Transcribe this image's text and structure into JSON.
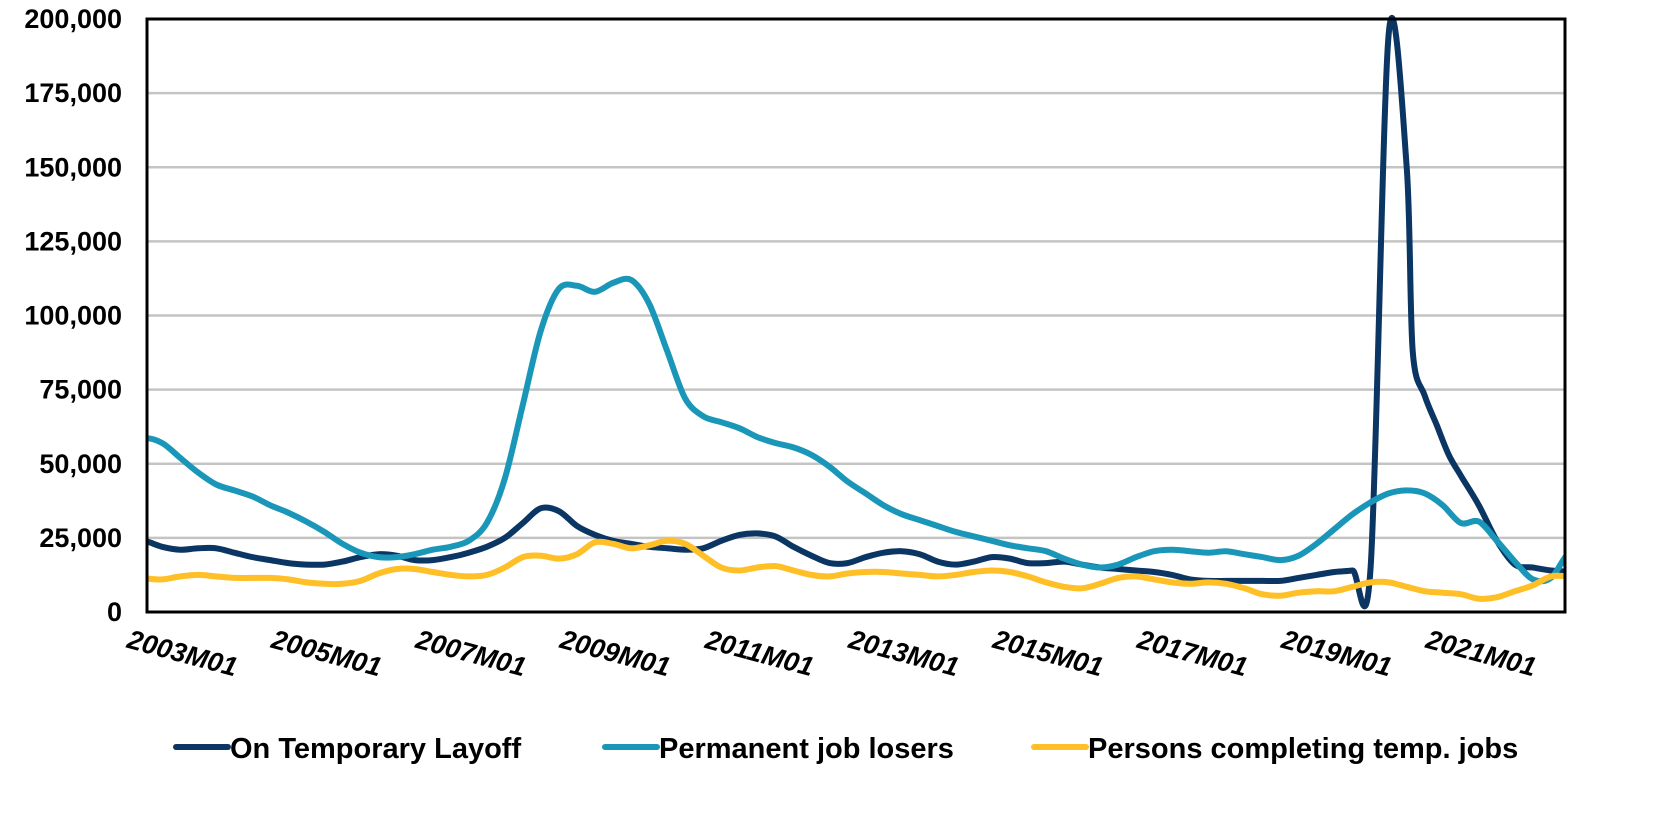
{
  "chart_data": {
    "type": "line",
    "title": "",
    "xlabel": "",
    "ylabel": "",
    "ylim": [
      0,
      200000
    ],
    "xlim": [
      "2002M01",
      "2022M01"
    ],
    "grid": true,
    "legend_position": "bottom",
    "yticks": [
      "0",
      "25,000",
      "50,000",
      "75,000",
      "100,000",
      "125,000",
      "150,000",
      "175,000",
      "200,000"
    ],
    "xticks": [
      "2003M01",
      "2005M01",
      "2007M01",
      "2009M01",
      "2011M01",
      "2013M01",
      "2015M01",
      "2017M01",
      "2019M01",
      "2021M01"
    ],
    "series": [
      {
        "name": "On Temporary Layoff",
        "color": "#0b3563",
        "x": [
          "2002M01",
          "2002M04",
          "2002M07",
          "2002M10",
          "2003M01",
          "2003M04",
          "2003M07",
          "2003M10",
          "2004M01",
          "2004M04",
          "2004M07",
          "2004M10",
          "2005M01",
          "2005M04",
          "2005M07",
          "2005M10",
          "2006M01",
          "2006M04",
          "2006M07",
          "2006M10",
          "2007M01",
          "2007M04",
          "2007M07",
          "2007M10",
          "2008M01",
          "2008M04",
          "2008M07",
          "2008M10",
          "2009M01",
          "2009M04",
          "2009M07",
          "2009M10",
          "2010M01",
          "2010M04",
          "2010M07",
          "2010M10",
          "2011M01",
          "2011M04",
          "2011M07",
          "2011M10",
          "2012M01",
          "2012M04",
          "2012M07",
          "2012M10",
          "2013M01",
          "2013M04",
          "2013M07",
          "2013M10",
          "2014M01",
          "2014M04",
          "2014M07",
          "2014M10",
          "2015M01",
          "2015M04",
          "2015M07",
          "2015M10",
          "2016M01",
          "2016M04",
          "2016M07",
          "2016M10",
          "2017M01",
          "2017M04",
          "2017M07",
          "2017M10",
          "2018M01",
          "2018M04",
          "2018M07",
          "2018M10",
          "2019M01",
          "2019M04",
          "2019M07",
          "2019M10",
          "2020M01",
          "2020M02",
          "2020M04",
          "2020M06",
          "2020M08",
          "2020M10",
          "2021M01",
          "2021M04",
          "2021M07",
          "2021M10",
          "2022M01",
          "2022M04",
          "2022M07",
          "2022M10",
          "2023M01"
        ],
        "values": [
          21000,
          24000,
          24000,
          22000,
          21000,
          21500,
          21500,
          20000,
          18500,
          17500,
          16500,
          16000,
          16000,
          17000,
          18500,
          19500,
          19000,
          17500,
          17500,
          18500,
          20000,
          22000,
          25000,
          30000,
          35000,
          34000,
          29000,
          26000,
          24000,
          23000,
          22000,
          21500,
          21000,
          21500,
          24000,
          26000,
          26500,
          25500,
          22000,
          19000,
          16500,
          16500,
          18500,
          20000,
          20500,
          19500,
          17000,
          16000,
          17000,
          18500,
          18000,
          16500,
          16500,
          17000,
          16000,
          15000,
          14500,
          14000,
          13500,
          12500,
          11000,
          10500,
          10500,
          10500,
          10500,
          10500,
          11500,
          12500,
          13500,
          14000,
          15000,
          195000,
          150000,
          88000,
          73000,
          63000,
          53000,
          46000,
          36000,
          24000,
          16000,
          15000,
          14000,
          13500,
          12500,
          13000,
          14500
        ]
      },
      {
        "name": "Permanent job losers",
        "color": "#1a97b8",
        "x": [
          "2002M01",
          "2002M04",
          "2002M07",
          "2002M10",
          "2003M01",
          "2003M04",
          "2003M07",
          "2003M10",
          "2004M01",
          "2004M04",
          "2004M07",
          "2004M10",
          "2005M01",
          "2005M04",
          "2005M07",
          "2005M10",
          "2006M01",
          "2006M04",
          "2006M07",
          "2006M10",
          "2007M01",
          "2007M04",
          "2007M07",
          "2007M10",
          "2008M01",
          "2008M04",
          "2008M07",
          "2008M10",
          "2009M01",
          "2009M04",
          "2009M07",
          "2009M10",
          "2010M01",
          "2010M04",
          "2010M07",
          "2010M10",
          "2011M01",
          "2011M04",
          "2011M07",
          "2011M10",
          "2012M01",
          "2012M04",
          "2012M07",
          "2012M10",
          "2013M01",
          "2013M04",
          "2013M07",
          "2013M10",
          "2014M01",
          "2014M04",
          "2014M07",
          "2014M10",
          "2015M01",
          "2015M04",
          "2015M07",
          "2015M10",
          "2016M01",
          "2016M04",
          "2016M07",
          "2016M10",
          "2017M01",
          "2017M04",
          "2017M07",
          "2017M10",
          "2018M01",
          "2018M04",
          "2018M07",
          "2018M10",
          "2019M01",
          "2019M04",
          "2019M07",
          "2019M10",
          "2020M01",
          "2020M04",
          "2020M07",
          "2020M10",
          "2021M01",
          "2021M04",
          "2021M07",
          "2021M10",
          "2022M01",
          "2022M04",
          "2022M07",
          "2022M10",
          "2023M01"
        ],
        "values": [
          49000,
          55000,
          58500,
          57000,
          52000,
          47000,
          43000,
          41000,
          39000,
          36000,
          33500,
          30500,
          27000,
          23000,
          20000,
          18500,
          18500,
          19500,
          21000,
          22000,
          24000,
          30000,
          45000,
          70000,
          95000,
          109000,
          110000,
          108000,
          111000,
          112000,
          104000,
          88000,
          72000,
          66000,
          64000,
          62000,
          59000,
          57000,
          55500,
          53000,
          49000,
          44000,
          40000,
          36000,
          33000,
          31000,
          29000,
          27000,
          25500,
          24000,
          22500,
          21500,
          20500,
          18000,
          16000,
          15000,
          16000,
          18500,
          20500,
          21000,
          20500,
          20000,
          20500,
          19500,
          18500,
          17500,
          19000,
          23000,
          28000,
          33000,
          37000,
          40000,
          41000,
          40000,
          36000,
          30000,
          30500,
          24000,
          17000,
          11000,
          11500,
          20000,
          20500,
          17500,
          13000
        ]
      },
      {
        "name": "Persons completing temp. jobs",
        "color": "#ffbf26",
        "x": [
          "2002M01",
          "2002M04",
          "2002M07",
          "2002M10",
          "2003M01",
          "2003M04",
          "2003M07",
          "2003M10",
          "2004M01",
          "2004M04",
          "2004M07",
          "2004M10",
          "2005M01",
          "2005M04",
          "2005M07",
          "2005M10",
          "2006M01",
          "2006M04",
          "2006M07",
          "2006M10",
          "2007M01",
          "2007M04",
          "2007M07",
          "2007M10",
          "2008M01",
          "2008M04",
          "2008M07",
          "2008M10",
          "2009M01",
          "2009M04",
          "2009M07",
          "2009M10",
          "2010M01",
          "2010M04",
          "2010M07",
          "2010M10",
          "2011M01",
          "2011M04",
          "2011M07",
          "2011M10",
          "2012M01",
          "2012M04",
          "2012M07",
          "2012M10",
          "2013M01",
          "2013M04",
          "2013M07",
          "2013M10",
          "2014M01",
          "2014M04",
          "2014M07",
          "2014M10",
          "2015M01",
          "2015M04",
          "2015M07",
          "2015M10",
          "2016M01",
          "2016M04",
          "2016M07",
          "2016M10",
          "2017M01",
          "2017M04",
          "2017M07",
          "2017M10",
          "2018M01",
          "2018M04",
          "2018M07",
          "2018M10",
          "2019M01",
          "2019M04",
          "2019M07",
          "2019M10",
          "2020M01",
          "2020M04",
          "2020M07",
          "2020M10",
          "2021M01",
          "2021M04",
          "2021M07",
          "2021M10",
          "2022M01",
          "2022M04",
          "2022M07",
          "2022M10",
          "2023M01"
        ],
        "values": [
          15000,
          13500,
          11500,
          11000,
          12000,
          12500,
          12000,
          11500,
          11500,
          11500,
          11000,
          10000,
          9500,
          9500,
          10500,
          13000,
          14500,
          14500,
          13500,
          12500,
          12000,
          12500,
          15000,
          18500,
          19000,
          18000,
          19500,
          23500,
          23000,
          21500,
          22500,
          24000,
          23000,
          19000,
          15000,
          14000,
          15000,
          15500,
          14000,
          12500,
          12000,
          13000,
          13500,
          13500,
          13000,
          12500,
          12000,
          12500,
          13500,
          14000,
          13500,
          12000,
          10000,
          8500,
          8000,
          9500,
          11500,
          12000,
          11000,
          10000,
          9500,
          10000,
          9500,
          8000,
          6000,
          5500,
          6500,
          7000,
          7000,
          8500,
          10000,
          10000,
          8500,
          7000,
          6500,
          6000,
          4500,
          5000,
          7000,
          9000,
          12000,
          12000,
          11500,
          11500,
          11500
        ]
      }
    ]
  }
}
